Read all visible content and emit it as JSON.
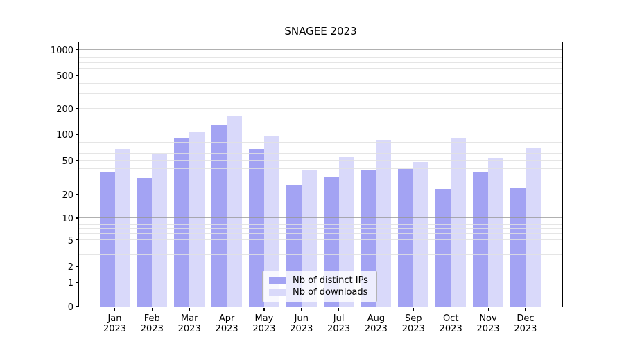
{
  "chart_data": {
    "type": "bar",
    "title": "SNAGEE 2023",
    "scale": "log-like (symlog with 0 baseline)",
    "categories": [
      "Jan 2023",
      "Feb 2023",
      "Mar 2023",
      "Apr 2023",
      "May 2023",
      "Jun 2023",
      "Jul 2023",
      "Aug 2023",
      "Sep 2023",
      "Oct 2023",
      "Nov 2023",
      "Dec 2023"
    ],
    "series": [
      {
        "name": "Nb of distinct IPs",
        "color": "#a3a3f3",
        "values": [
          36,
          31,
          92,
          127,
          68,
          26,
          32,
          39,
          40,
          23,
          36,
          24
        ]
      },
      {
        "name": "Nb of downloads",
        "color": "#d9d9fa",
        "values": [
          67,
          60,
          105,
          162,
          94,
          38,
          54,
          85,
          48,
          90,
          52,
          69
        ]
      }
    ],
    "y_ticks": [
      0,
      1,
      2,
      5,
      10,
      20,
      50,
      100,
      200,
      500,
      1000
    ],
    "ylim": [
      0,
      1300
    ],
    "xlabel": "",
    "ylabel": "",
    "grid": true,
    "legend_position": "lower center"
  }
}
